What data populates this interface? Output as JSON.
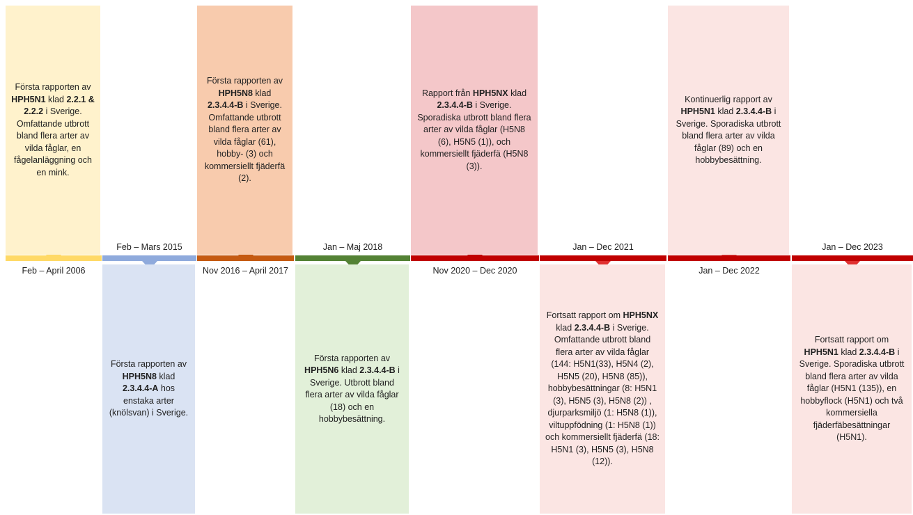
{
  "events": [
    {
      "date": "Feb – April 2006",
      "runs": [
        {
          "text": "Första rapporten av "
        },
        {
          "text": "HPH5N1",
          "bold": true
        },
        {
          "text": " klad "
        },
        {
          "text": "2.2.1 & 2.2.2",
          "bold": true
        },
        {
          "text": " i Sverige. Omfattande utbrott bland flera arter av vilda fåglar, en fågelanläggning och en mink."
        }
      ]
    },
    {
      "date": "Feb – Mars 2015",
      "runs": [
        {
          "text": "Första rapporten av "
        },
        {
          "text": "HPH5N8",
          "bold": true
        },
        {
          "text": " klad "
        },
        {
          "text": "2.3.4.4-A",
          "bold": true
        },
        {
          "text": " hos enstaka arter (knölsvan) i Sverige."
        }
      ]
    },
    {
      "date": "Nov 2016 – April 2017",
      "runs": [
        {
          "text": "Första rapporten av "
        },
        {
          "text": "HPH5N8",
          "bold": true
        },
        {
          "text": " klad "
        },
        {
          "text": "2.3.4.4-B",
          "bold": true
        },
        {
          "text": " i Sverige. Omfattande utbrott bland flera arter av vilda fåglar (61), hobby- (3) och kommersiellt fjäderfä (2)."
        }
      ]
    },
    {
      "date": "Jan – Maj 2018",
      "runs": [
        {
          "text": "Första rapporten av "
        },
        {
          "text": "HPH5N6",
          "bold": true
        },
        {
          "text": " klad "
        },
        {
          "text": "2.3.4.4-B",
          "bold": true
        },
        {
          "text": " i Sverige. Utbrott bland flera arter av vilda fåglar (18) och en hobbybesättning."
        }
      ]
    },
    {
      "date": "Nov 2020 – Dec 2020",
      "runs": [
        {
          "text": "Rapport från "
        },
        {
          "text": "HPH5NX",
          "bold": true
        },
        {
          "text": " klad "
        },
        {
          "text": "2.3.4.4-B",
          "bold": true
        },
        {
          "text": " i Sverige. Sporadiska utbrott bland flera arter av vilda fåglar (H5N8 (6), H5N5 (1)), och kommersiellt fjäderfä (H5N8 (3))."
        }
      ]
    },
    {
      "date": "Jan – Dec 2021",
      "runs": [
        {
          "text": "Fortsatt rapport om "
        },
        {
          "text": "HPH5NX",
          "bold": true
        },
        {
          "text": " klad "
        },
        {
          "text": "2.3.4.4-B",
          "bold": true
        },
        {
          "text": " i Sverige. Omfattande utbrott bland flera arter av vilda fåglar (144: H5N1(33), H5N4 (2), H5N5 (20), H5N8 (85)), hobbybesättningar (8: H5N1 (3), H5N5 (3), H5N8 (2)) , djurparksmiljö (1: H5N8 (1)), viltuppfödning (1: H5N8 (1)) och kommersiellt fjäderfä (18: H5N1 (3), H5N5 (3), H5N8 (12))."
        }
      ]
    },
    {
      "date": "Jan – Dec 2022",
      "runs": [
        {
          "text": "Kontinuerlig rapport av "
        },
        {
          "text": "HPH5N1",
          "bold": true
        },
        {
          "text": " klad "
        },
        {
          "text": "2.3.4.4-B",
          "bold": true
        },
        {
          "text": " i Sverige. Sporadiska utbrott bland flera arter av vilda fåglar (89) och en hobbybesättning."
        }
      ]
    },
    {
      "date": "Jan – Dec 2023",
      "runs": [
        {
          "text": "Fortsatt rapport om "
        },
        {
          "text": "HPH5N1",
          "bold": true
        },
        {
          "text": " klad "
        },
        {
          "text": "2.3.4.4-B",
          "bold": true
        },
        {
          "text": " i Sverige. Sporadiska utbrott bland flera arter av vilda fåglar (H5N1 (135)), en hobbyflock (H5N1) och två kommersiella fjäderfäbesättningar (H5N1)."
        }
      ]
    }
  ]
}
